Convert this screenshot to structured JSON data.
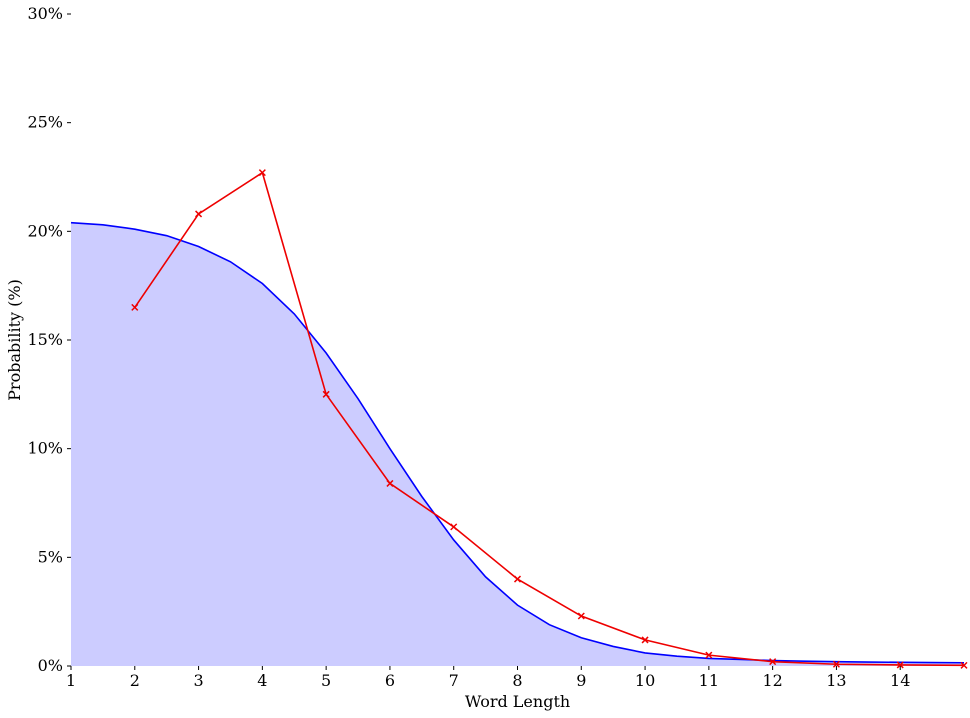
{
  "chart_data": {
    "type": "line",
    "xlabel": "Word Length",
    "ylabel": "Probability (%)",
    "xlim": [
      1,
      15
    ],
    "ylim": [
      0,
      30
    ],
    "x_ticks": [
      1,
      2,
      3,
      4,
      5,
      6,
      7,
      8,
      9,
      10,
      11,
      12,
      13,
      14
    ],
    "y_ticks": [
      0,
      5,
      10,
      15,
      20,
      25,
      30
    ],
    "y_tick_labels": [
      "0%",
      "5%",
      "10%",
      "15%",
      "20%",
      "25%",
      "30%"
    ],
    "grid": false,
    "series": [
      {
        "kind": "fitted-curve-filled",
        "color": "#0000ff",
        "fill": "#ccccff",
        "x": [
          1,
          1.5,
          2,
          2.5,
          3,
          3.5,
          4,
          4.5,
          5,
          5.5,
          6,
          6.5,
          7,
          7.5,
          8,
          8.5,
          9,
          9.5,
          10,
          10.5,
          11,
          11.5,
          12,
          12.5,
          13,
          13.5,
          14,
          14.5,
          15
        ],
        "y": [
          20.4,
          20.3,
          20.1,
          19.8,
          19.3,
          18.6,
          17.6,
          16.2,
          14.4,
          12.3,
          10.0,
          7.8,
          5.8,
          4.1,
          2.8,
          1.9,
          1.3,
          0.9,
          0.6,
          0.45,
          0.35,
          0.3,
          0.25,
          0.22,
          0.2,
          0.18,
          0.17,
          0.16,
          0.15
        ]
      },
      {
        "kind": "observed",
        "color": "#ee0000",
        "marker": "x",
        "x": [
          2,
          3,
          4,
          5,
          6,
          7,
          8,
          9,
          10,
          11,
          12,
          13,
          14,
          15
        ],
        "y": [
          16.5,
          20.8,
          22.7,
          12.5,
          8.4,
          6.4,
          4.0,
          2.3,
          1.2,
          0.5,
          0.2,
          0.08,
          0.05,
          0.03
        ]
      }
    ]
  }
}
